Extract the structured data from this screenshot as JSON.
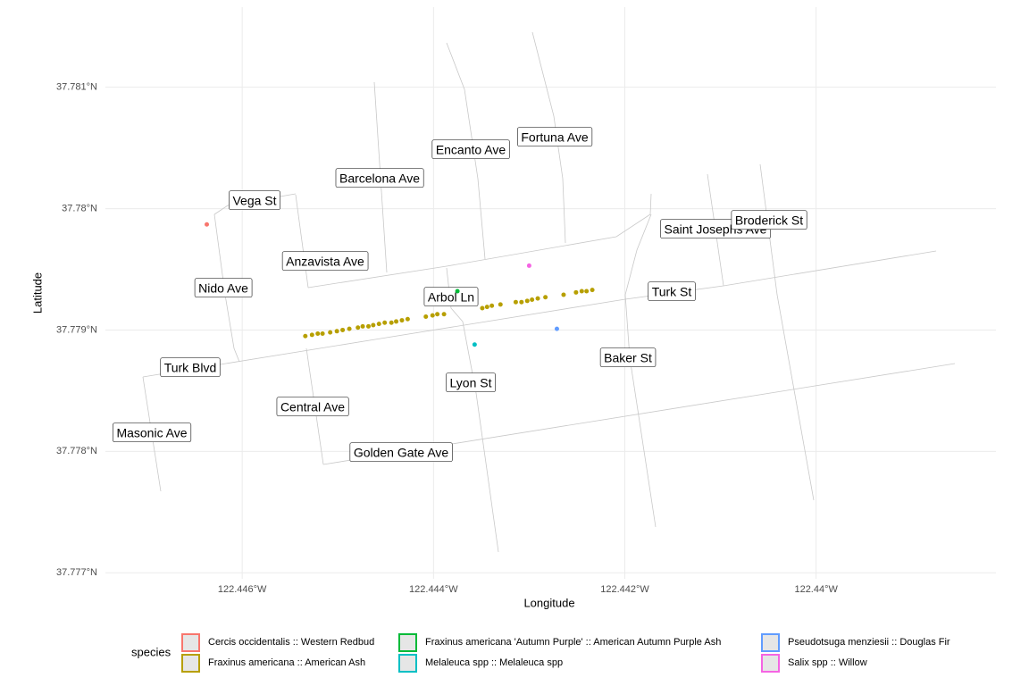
{
  "chart_data": {
    "type": "scatter",
    "x_label": "Longitude",
    "y_label": "Latitude",
    "xlim": [
      -122.44743,
      -122.43812
    ],
    "ylim": [
      37.77695,
      37.78166
    ],
    "xticks": [
      {
        "value": -122.446,
        "label": "122.446°W"
      },
      {
        "value": -122.444,
        "label": "122.444°W"
      },
      {
        "value": -122.442,
        "label": "122.442°W"
      },
      {
        "value": -122.44,
        "label": "122.44°W"
      }
    ],
    "yticks": [
      {
        "value": 37.777,
        "label": "37.777°N"
      },
      {
        "value": 37.778,
        "label": "37.778°N"
      },
      {
        "value": 37.779,
        "label": "37.779°N"
      },
      {
        "value": 37.78,
        "label": "37.78°N"
      },
      {
        "value": 37.781,
        "label": "37.781°N"
      }
    ],
    "grid": true,
    "legend_title": "species",
    "legend_position": "bottom",
    "street_labels": [
      "Fortuna Ave",
      "Encanto Ave",
      "Barcelona Ave",
      "Vega St",
      "Anzavista Ave",
      "Nido Ave",
      "Arbol Ln",
      "Turk St",
      "Saint Josephs Ave",
      "Broderick St",
      "Turk Blvd",
      "Baker St",
      "Lyon St",
      "Central Ave",
      "Masonic Ave",
      "Golden Gate Ave"
    ],
    "series": [
      {
        "name": "Cercis occidentalis :: Western Redbud",
        "color": "#F8766D",
        "x": [
          -122.44637
        ],
        "values": [
          37.77987
        ]
      },
      {
        "name": "Fraxinus americana :: American Ash",
        "color": "#B79F00",
        "x": [
          -122.44534,
          -122.44527,
          -122.44521,
          -122.44516,
          -122.44508,
          -122.44501,
          -122.44495,
          -122.44488,
          -122.44479,
          -122.44474,
          -122.44468,
          -122.44463,
          -122.44457,
          -122.44451,
          -122.44444,
          -122.44439,
          -122.44433,
          -122.44427,
          -122.44408,
          -122.44401,
          -122.44396,
          -122.44389,
          -122.44349,
          -122.44344,
          -122.44339,
          -122.4433,
          -122.44314,
          -122.44308,
          -122.44302,
          -122.44297,
          -122.44291,
          -122.44283,
          -122.44264,
          -122.44251,
          -122.44245,
          -122.4424,
          -122.44234
        ],
        "values": [
          37.77895,
          37.77896,
          37.77897,
          37.77897,
          37.77898,
          37.77899,
          37.779,
          37.77901,
          37.77902,
          37.77903,
          37.77903,
          37.77904,
          37.77905,
          37.77906,
          37.77906,
          37.77907,
          37.77908,
          37.77909,
          37.77911,
          37.77912,
          37.77913,
          37.77913,
          37.77918,
          37.77919,
          37.7792,
          37.77921,
          37.77923,
          37.77923,
          37.77924,
          37.77925,
          37.77926,
          37.77927,
          37.77929,
          37.77931,
          37.77932,
          37.77932,
          37.77933
        ]
      },
      {
        "name": "Fraxinus americana 'Autumn Purple' :: American Autumn Purple Ash",
        "color": "#00BA38",
        "x": [
          -122.44375
        ],
        "values": [
          37.77932
        ]
      },
      {
        "name": "Melaleuca spp :: Melaleuca spp",
        "color": "#00BFC4",
        "x": [
          -122.44357
        ],
        "values": [
          37.77888
        ]
      },
      {
        "name": "Pseudotsuga menziesii :: Douglas Fir",
        "color": "#619CFF",
        "x": [
          -122.44271
        ],
        "values": [
          37.77901
        ]
      },
      {
        "name": "Salix spp :: Willow",
        "color": "#F564E3",
        "x": [
          -122.443
        ],
        "values": [
          37.77953
        ]
      }
    ]
  }
}
